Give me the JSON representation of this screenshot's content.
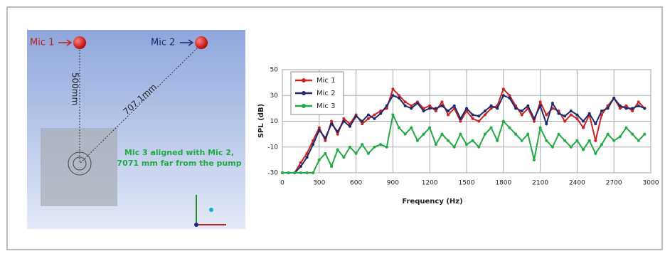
{
  "diagram": {
    "mic1": "Mic 1",
    "mic2": "Mic 2",
    "dist1": "500mm",
    "dist2": "707.1mm",
    "note_line1": "Mic 3 aligned with Mic 2,",
    "note_line2": "7071 mm far from the pump"
  },
  "chart_data": {
    "type": "line",
    "xlabel": "Frequency (Hz)",
    "ylabel": "SPL (dB)",
    "x": [
      0,
      50,
      100,
      150,
      200,
      250,
      300,
      350,
      400,
      450,
      500,
      550,
      600,
      650,
      700,
      750,
      800,
      850,
      900,
      950,
      1000,
      1050,
      1100,
      1150,
      1200,
      1250,
      1300,
      1350,
      1400,
      1450,
      1500,
      1550,
      1600,
      1650,
      1700,
      1750,
      1800,
      1850,
      1900,
      1950,
      2000,
      2050,
      2100,
      2150,
      2200,
      2250,
      2300,
      2350,
      2400,
      2450,
      2500,
      2550,
      2600,
      2650,
      2700,
      2750,
      2800,
      2850,
      2900,
      2950
    ],
    "series": [
      {
        "name": "Mic 1",
        "color": "#cc2222",
        "values": [
          -30,
          -30,
          -30,
          -22,
          -15,
          -5,
          5,
          -5,
          10,
          0,
          12,
          8,
          15,
          8,
          12,
          15,
          18,
          20,
          35,
          30,
          25,
          22,
          25,
          20,
          22,
          18,
          25,
          15,
          20,
          10,
          18,
          12,
          10,
          15,
          20,
          22,
          35,
          30,
          22,
          15,
          20,
          10,
          25,
          15,
          20,
          18,
          10,
          15,
          12,
          5,
          15,
          -5,
          15,
          22,
          28,
          20,
          22,
          18,
          25,
          20
        ]
      },
      {
        "name": "Mic 2",
        "color": "#1a2a6e",
        "values": [
          -30,
          -30,
          -30,
          -25,
          -18,
          -8,
          3,
          -3,
          8,
          2,
          10,
          6,
          14,
          10,
          15,
          12,
          16,
          22,
          30,
          28,
          22,
          20,
          24,
          18,
          20,
          20,
          22,
          18,
          22,
          12,
          20,
          15,
          14,
          18,
          22,
          20,
          30,
          28,
          20,
          18,
          22,
          12,
          22,
          8,
          24,
          16,
          14,
          18,
          15,
          10,
          16,
          8,
          18,
          20,
          28,
          22,
          20,
          20,
          22,
          20
        ]
      },
      {
        "name": "Mic 3",
        "color": "#22aa44",
        "values": [
          -30,
          -30,
          -30,
          -30,
          -30,
          -30,
          -20,
          -15,
          -25,
          -12,
          -18,
          -10,
          -15,
          -8,
          -15,
          -10,
          -8,
          -10,
          15,
          5,
          0,
          5,
          -5,
          0,
          5,
          -8,
          0,
          -5,
          -10,
          0,
          -8,
          -5,
          -10,
          0,
          5,
          -5,
          10,
          5,
          0,
          -5,
          0,
          -20,
          5,
          -5,
          -10,
          0,
          -5,
          -10,
          -5,
          -12,
          -5,
          -15,
          -8,
          0,
          -5,
          -2,
          5,
          0,
          -5,
          0
        ]
      }
    ],
    "xlim": [
      0,
      3000
    ],
    "xticks": [
      0,
      300,
      600,
      900,
      1200,
      1500,
      1800,
      2100,
      2400,
      2700,
      3000
    ],
    "ylim": [
      -30,
      50
    ],
    "yticks": [
      -30,
      -10,
      10,
      30,
      50
    ],
    "grid": true,
    "legend": "upper left"
  }
}
